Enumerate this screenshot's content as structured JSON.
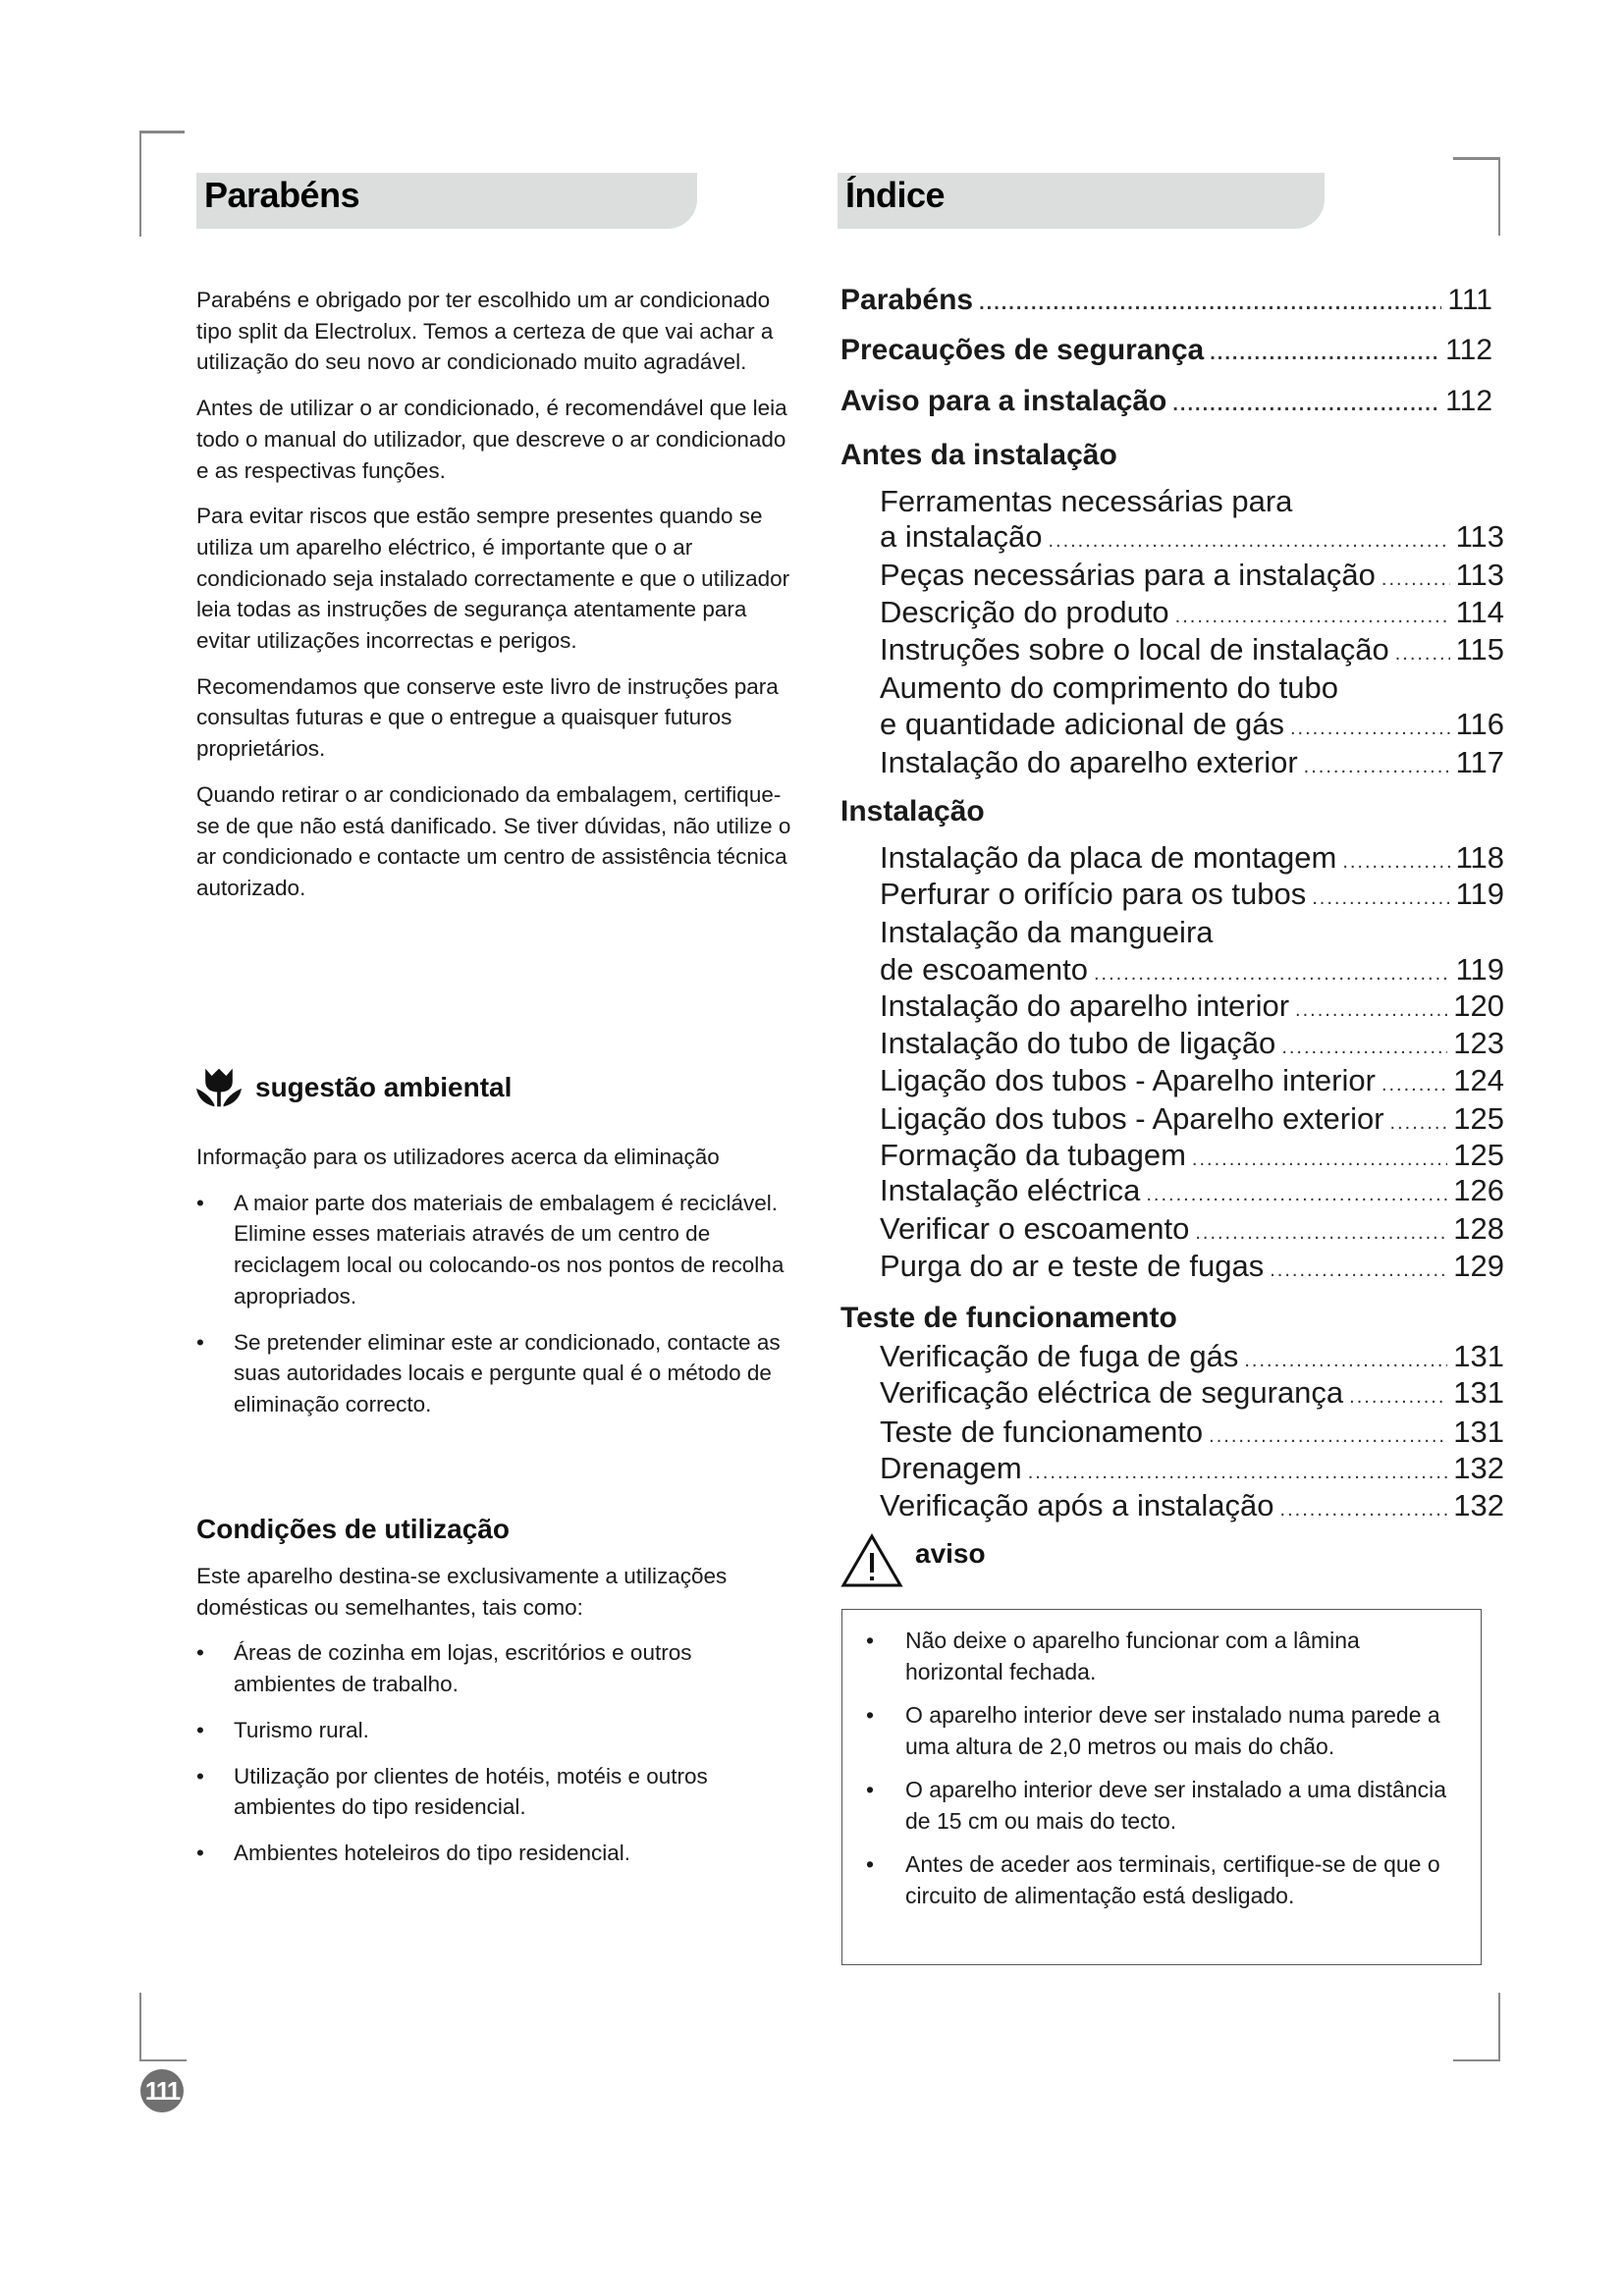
{
  "left": {
    "title": "Parabéns",
    "paragraphs": [
      "Parabéns e obrigado por ter escolhido um ar condicionado tipo split da Electrolux. Temos a certeza de que vai achar a utilização do seu novo ar condicionado muito agradável.",
      "Antes de utilizar o ar condicionado, é recomendável que leia todo o manual do utilizador, que descreve o ar condicionado e as respectivas funções.",
      "Para evitar riscos que estão sempre presentes quando se utiliza um aparelho eléctrico, é importante que o ar condicionado seja instalado correctamente e que o utilizador leia todas as instruções de segurança atentamente para evitar utilizações incorrectas e perigos.",
      "Recomendamos que conserve este livro de instruções para consultas futuras e que o entregue a quaisquer futuros proprietários.",
      "Quando retirar o ar condicionado da embalagem, certifique-se de que não está danificado. Se tiver dúvidas, não utilize o ar condicionado e contacte um centro de assistência técnica autorizado."
    ],
    "eco": {
      "icon": "flower-icon",
      "heading": "sugestão ambiental",
      "intro": "Informação para os utilizadores acerca da eliminação",
      "bullets": [
        "A maior parte dos materiais de embalagem é reciclável. Elimine esses materiais através de um centro de reciclagem local ou colocando-os nos pontos de recolha apropriados.",
        "Se pretender eliminar este ar condicionado, contacte as suas autoridades locais e pergunte qual é o método de eliminação correcto."
      ]
    },
    "conditions": {
      "heading": "Condições de utilização",
      "intro": "Este aparelho destina-se exclusivamente a utilizações domésticas ou semelhantes, tais como:",
      "bullets": [
        "Áreas de cozinha em lojas, escritórios e outros ambientes de trabalho.",
        "Turismo rural.",
        "Utilização por clientes de hotéis, motéis e outros ambientes do tipo residencial.",
        "Ambientes hoteleiros do tipo residencial."
      ]
    }
  },
  "index": {
    "title": "Índice",
    "entries": [
      {
        "text": "Parabéns",
        "page": "111"
      },
      {
        "text": "Precauções de segurança",
        "page": "112"
      },
      {
        "text": "Aviso para a instalação",
        "page": "112"
      },
      {
        "text": "Antes da instalação"
      },
      {
        "text": "Ferramentas necessárias para"
      },
      {
        "text": "a instalação",
        "page": "113"
      },
      {
        "text": "Peças necessárias para a instalação",
        "page": "113"
      },
      {
        "text": "Descrição do produto",
        "page": "114"
      },
      {
        "text": "Instruções sobre o local de instalação",
        "page": "115"
      },
      {
        "text": "Aumento do comprimento do tubo"
      },
      {
        "text": "e quantidade adicional de gás",
        "page": "116"
      },
      {
        "text": "Instalação do aparelho exterior",
        "page": "117"
      },
      {
        "text": "Instalação"
      },
      {
        "text": "Instalação da placa de montagem",
        "page": "118"
      },
      {
        "text": "Perfurar o orifício para os tubos",
        "page": "119"
      },
      {
        "text": "Instalação da mangueira"
      },
      {
        "text": "de escoamento",
        "page": "119"
      },
      {
        "text": "Instalação do aparelho interior",
        "page": "120"
      },
      {
        "text": "Instalação do tubo de ligação",
        "page": "123"
      },
      {
        "text": "Ligação dos tubos - Aparelho interior",
        "page": "124"
      },
      {
        "text": "Ligação dos tubos - Aparelho exterior",
        "page": "125"
      },
      {
        "text": "Formação da tubagem",
        "page": "125"
      },
      {
        "text": "Instalação eléctrica",
        "page": "126"
      },
      {
        "text": "Verificar o escoamento",
        "page": "128"
      },
      {
        "text": "Purga do ar e teste de fugas",
        "page": "129"
      },
      {
        "text": "Teste de funcionamento"
      },
      {
        "text": "Verificação de fuga de gás",
        "page": "131"
      },
      {
        "text": "Verificação eléctrica de segurança",
        "page": "131"
      },
      {
        "text": "Teste de funcionamento",
        "page": "131"
      },
      {
        "text": "Drenagem",
        "page": "132"
      },
      {
        "text": "Verificação após a instalação",
        "page": "132"
      }
    ]
  },
  "warning": {
    "icon": "warning-triangle-icon",
    "heading": "aviso",
    "bullets": [
      "Não deixe o aparelho funcionar com a lâmina horizontal fechada.",
      "O aparelho interior deve ser instalado numa parede a uma altura de 2,0 metros ou mais do chão.",
      "O aparelho interior deve ser instalado a uma distância de 15 cm ou mais do tecto.",
      "Antes de aceder aos terminais, certifique-se de que o circuito de alimentação está desligado."
    ]
  },
  "page_number": "111"
}
